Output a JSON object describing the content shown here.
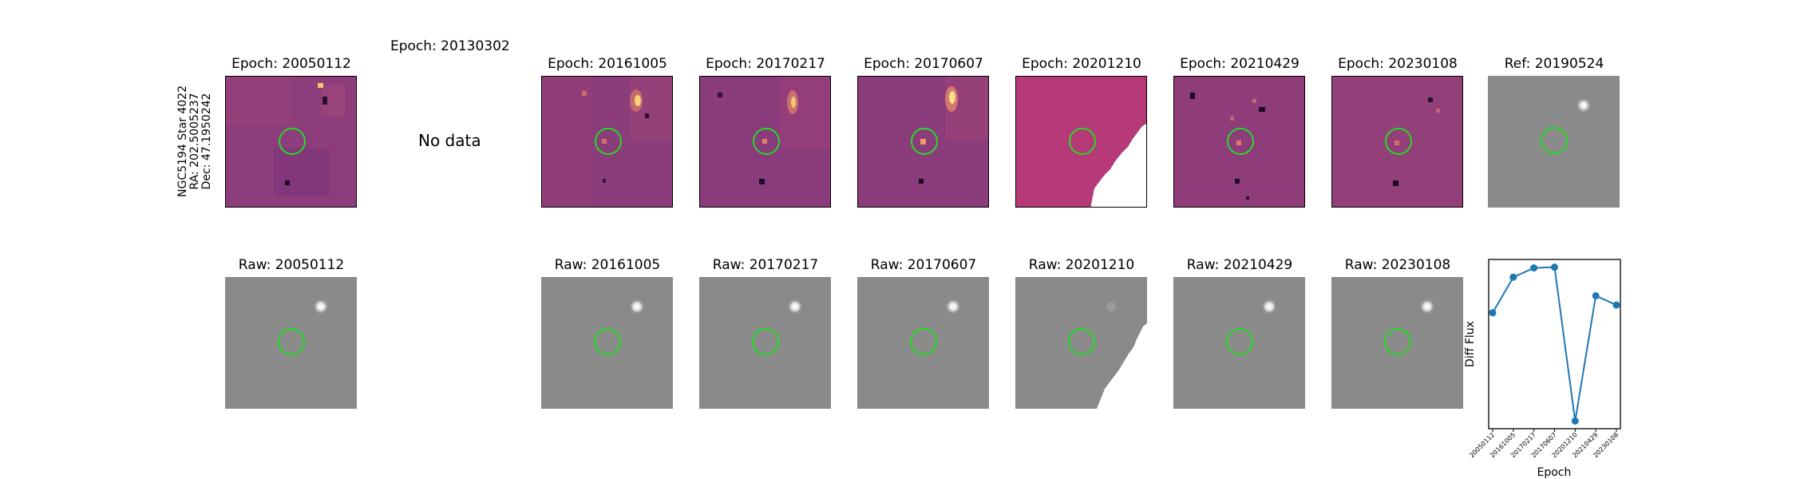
{
  "star_label": {
    "line1": "NGC5194 Star 4022",
    "line2": "RA: 202.5005237",
    "line3": "Dec: 47.1950242"
  },
  "diff_titles": [
    "Epoch: 20050112",
    "Epoch: 20130302",
    "Epoch: 20161005",
    "Epoch: 20170217",
    "Epoch: 20170607",
    "Epoch: 20201210",
    "Epoch: 20210429",
    "Epoch: 20230108",
    "Ref: 20190524"
  ],
  "no_data_text": "No data",
  "raw_titles": [
    "Raw: 20050112",
    "Raw: 20161005",
    "Raw: 20170217",
    "Raw: 20170607",
    "Raw: 20201210",
    "Raw: 20210429",
    "Raw: 20230108"
  ],
  "colors": {
    "diff_base": "#8a3a7a",
    "marker_circle": "#22dd22",
    "raw_gray": "#8a8a8a",
    "line": "#1f77b4"
  },
  "chart_data": {
    "type": "line",
    "xlabel": "Epoch",
    "ylabel": "Diff Flux",
    "categories": [
      "20050112",
      "20161005",
      "20170217",
      "20170607",
      "20201210",
      "20210429",
      "20230108"
    ],
    "series": [
      {
        "values": [
          0.55,
          0.78,
          0.84,
          0.845,
          -0.15,
          0.66,
          0.6
        ]
      }
    ],
    "y_ticks_shown": false,
    "grid": false
  }
}
